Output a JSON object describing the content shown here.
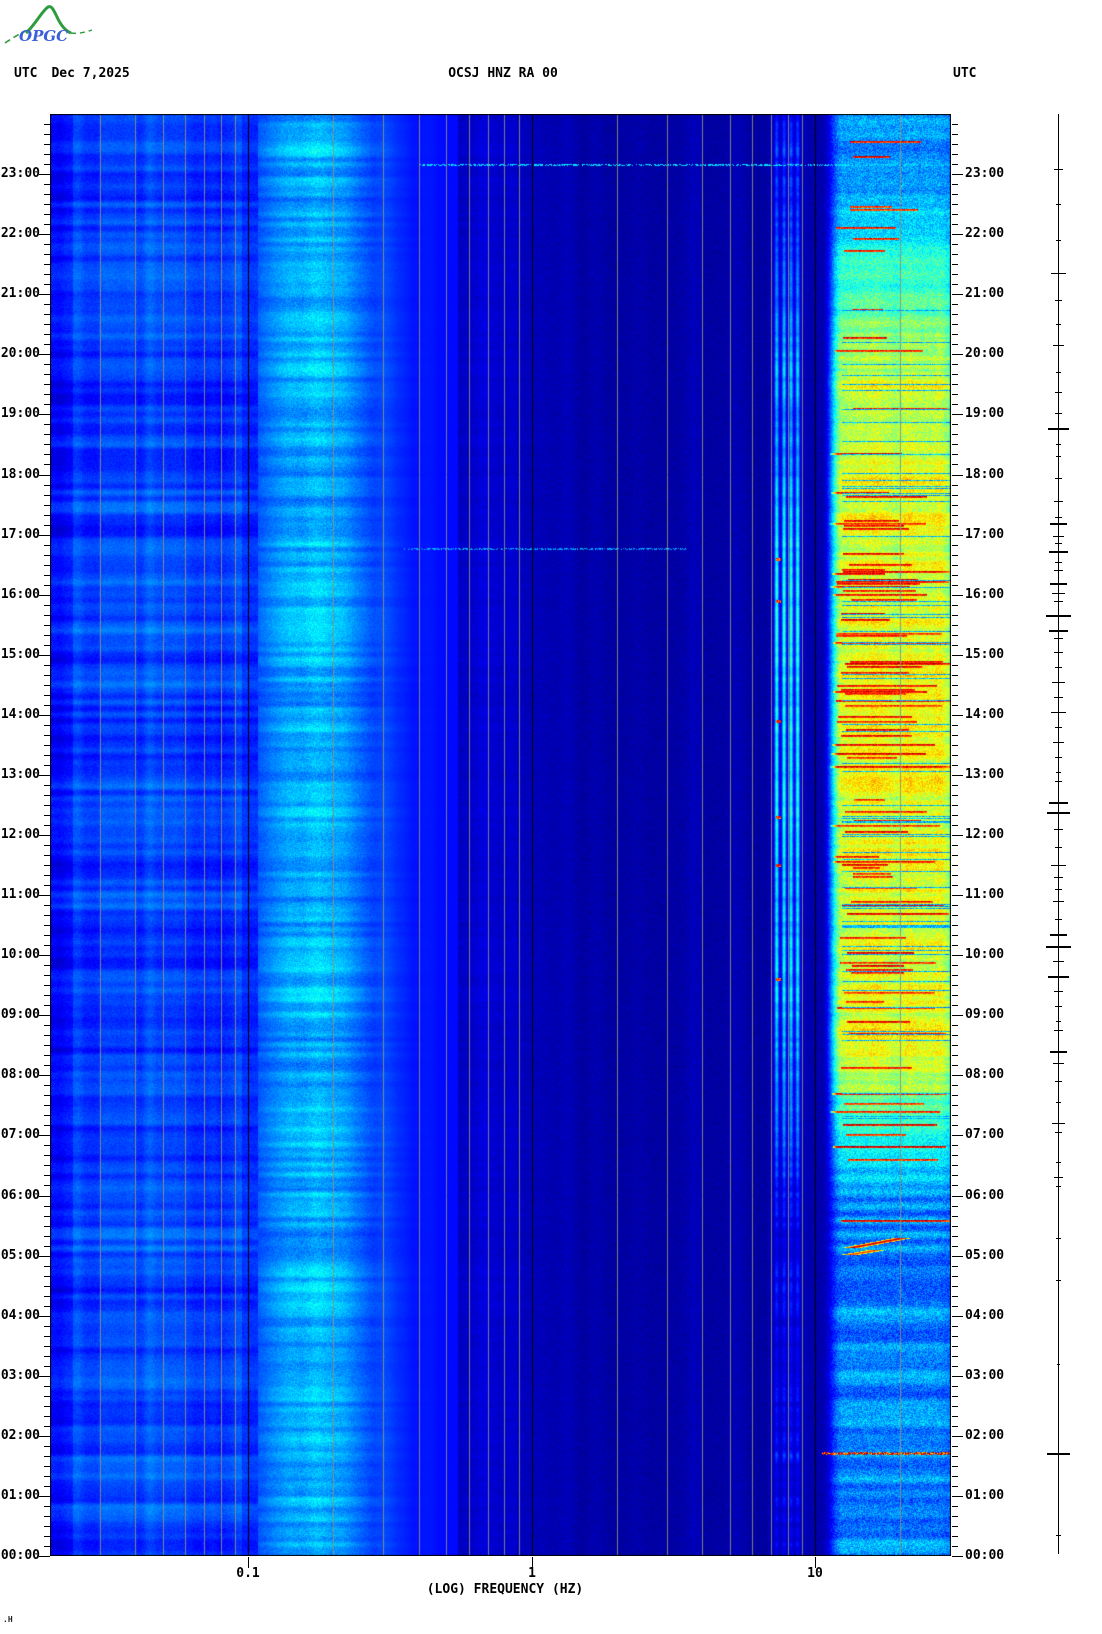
{
  "header": {
    "logo_text": "OPGC",
    "timezone_left": "UTC",
    "date": "Dec 7,2025",
    "title": "OCSJ HNZ RA 00",
    "timezone_right": "UTC"
  },
  "footer": {
    "mark": ".H"
  },
  "colors": {
    "background": "#ffffff",
    "text": "#000000",
    "grid_minor": "#8f8f78",
    "grid_major": "#000000",
    "logo_green": "#2e9b3e",
    "logo_blue": "#3a5fd9",
    "trace": "#000000"
  },
  "x_axis": {
    "label": "(LOG) FREQUENCY (HZ)",
    "scale": "log",
    "freq_min_hz": 0.02,
    "freq_max_hz": 30,
    "ticks": [
      {
        "value": 0.1,
        "label": "0.1"
      },
      {
        "value": 1,
        "label": "1"
      },
      {
        "value": 10,
        "label": "10"
      }
    ],
    "grid_minor_freqs": [
      0.03,
      0.04,
      0.05,
      0.06,
      0.07,
      0.08,
      0.09,
      0.2,
      0.3,
      0.4,
      0.5,
      0.6,
      0.7,
      0.8,
      0.9,
      2,
      3,
      4,
      5,
      6,
      7,
      8,
      9,
      20
    ],
    "grid_major_freqs": [
      0.1,
      1,
      10
    ]
  },
  "y_axis": {
    "unit": "UTC",
    "start": "00:00",
    "end": "24:00",
    "major_tick_minutes": 60,
    "minor_tick_minutes": 10,
    "hour_labels": [
      "23:00",
      "22:00",
      "21:00",
      "20:00",
      "19:00",
      "18:00",
      "17:00",
      "16:00",
      "15:00",
      "14:00",
      "13:00",
      "12:00",
      "11:00",
      "10:00",
      "09:00",
      "08:00",
      "07:00",
      "06:00",
      "05:00",
      "04:00",
      "03:00",
      "02:00",
      "01:00",
      "00:00"
    ]
  },
  "chart_data": {
    "type": "heatmap",
    "subtype": "24h seismic spectrogram, time vertical (00:00 bottom to 24:00 top), log-frequency horizontal",
    "station": "OCSJ HNZ RA 00",
    "date_utc": "Dec 7,2025",
    "colormap": "jet",
    "x": {
      "label": "(LOG) FREQUENCY (HZ)",
      "min": 0.02,
      "max": 30,
      "scale": "log"
    },
    "y": {
      "label": "UTC time",
      "min_hours": 0,
      "max_hours": 24,
      "direction": "up"
    },
    "bands": [
      {
        "f_lo": 0.02,
        "f_hi": 0.095,
        "level": 0.19,
        "character": "medium blue, static vertical column striping with horizontal row banding"
      },
      {
        "f_lo": 0.095,
        "f_hi": 0.108,
        "level": 0.17,
        "character": "slight dip at 0.1 Hz"
      },
      {
        "f_lo": 0.108,
        "f_hi": 0.55,
        "level": 0.31,
        "peak_hz": 0.17,
        "character": "ocean microseism band, bright cyan, strong row banding all day"
      },
      {
        "f_lo": 0.55,
        "f_hi": 6.8,
        "level": 0.05,
        "character": "very quiet dark navy, faint mottle"
      },
      {
        "f_lo": 6.8,
        "f_hi": 9.4,
        "level": 0.08,
        "character": "narrow cyan spectral lines, brighter during daytime"
      },
      {
        "f_lo": 9.4,
        "f_hi": 10.6,
        "level": 0.05,
        "character": "quiet navy gap"
      },
      {
        "f_lo": 10.6,
        "f_hi": 30,
        "level": 0.6,
        "character": "daytime high-frequency noise: yellow/orange base with dark-red horizontal streaks ~07:00-21:00, blue-cyan mottle at night"
      }
    ],
    "spectral_line_freqs_hz": [
      7.3,
      7.75,
      8.2,
      8.65
    ],
    "spectral_line_bursts": {
      "freq_hz": 7.4,
      "times_hours": [
        9.6,
        11.5,
        12.3,
        13.9,
        15.9,
        16.6
      ]
    },
    "diurnal_envelope": {
      "t_hours": [
        0,
        1.5,
        1.68,
        1.78,
        3.5,
        4.8,
        5.4,
        6.0,
        6.4,
        7.0,
        7.6,
        8.1,
        9.0,
        10.0,
        11.0,
        12.0,
        13.0,
        15.0,
        17.0,
        17.6,
        18.3,
        18.9,
        19.4,
        20.0,
        20.6,
        21.2,
        21.8,
        22.5,
        23.2,
        24
      ],
      "level": [
        0.05,
        0.05,
        0.3,
        0.06,
        0.06,
        0.08,
        0.14,
        0.18,
        0.34,
        0.46,
        0.58,
        0.72,
        0.82,
        0.86,
        0.86,
        0.95,
        1.0,
        1.0,
        0.97,
        0.88,
        0.7,
        0.62,
        0.76,
        0.72,
        0.58,
        0.5,
        0.4,
        0.32,
        0.26,
        0.22
      ]
    },
    "events": [
      {
        "type": "broadband_streak",
        "time_hours": 1.72,
        "time_utc": "01:43",
        "f_lo": 10.6,
        "f_hi": 30,
        "intensity": "saturated multicolor red/yellow line"
      },
      {
        "type": "gliding_tremor",
        "time_hours": 5.2,
        "f_lo": 13.6,
        "f_hi": 20.0,
        "intensity": "short slanted yellow streak with red core"
      },
      {
        "type": "gliding_tremor",
        "time_hours": 5.06,
        "f_lo": 13.4,
        "f_hi": 16.2,
        "intensity": "short slanted yellow streak"
      },
      {
        "type": "faint_broadband_line",
        "time_hours": 23.17,
        "f_lo": 0.4,
        "f_hi": 30,
        "intensity": "faint speckled cyan line"
      },
      {
        "type": "faint_broadband_line",
        "time_hours": 16.78,
        "f_lo": 0.35,
        "f_hi": 3.5,
        "intensity": "very faint blue line"
      }
    ],
    "right_trace": {
      "description": "vertical event-amplitude trace at right margin; horizontal dashes mark events, dash half-width in px",
      "ticks": [
        [
          23.08,
          4
        ],
        [
          22.5,
          2
        ],
        [
          21.9,
          2
        ],
        [
          21.35,
          7
        ],
        [
          20.9,
          3
        ],
        [
          20.5,
          2
        ],
        [
          20.15,
          5
        ],
        [
          19.7,
          2
        ],
        [
          19.38,
          3
        ],
        [
          19.02,
          3
        ],
        [
          18.77,
          10
        ],
        [
          18.5,
          2
        ],
        [
          18.3,
          2
        ],
        [
          17.95,
          3
        ],
        [
          17.56,
          4
        ],
        [
          17.3,
          3
        ],
        [
          17.19,
          8
        ],
        [
          16.98,
          5
        ],
        [
          16.86,
          3
        ],
        [
          16.72,
          9
        ],
        [
          16.55,
          3
        ],
        [
          16.41,
          4
        ],
        [
          16.2,
          8
        ],
        [
          16.02,
          6
        ],
        [
          15.9,
          4
        ],
        [
          15.66,
          12
        ],
        [
          15.41,
          9
        ],
        [
          15.28,
          4
        ],
        [
          15.05,
          4
        ],
        [
          14.8,
          3
        ],
        [
          14.55,
          6
        ],
        [
          14.3,
          4
        ],
        [
          14.05,
          7
        ],
        [
          13.8,
          3
        ],
        [
          13.55,
          5
        ],
        [
          13.3,
          3
        ],
        [
          13.05,
          2
        ],
        [
          12.9,
          3
        ],
        [
          12.55,
          9
        ],
        [
          12.38,
          11
        ],
        [
          12.1,
          4
        ],
        [
          11.8,
          3
        ],
        [
          11.5,
          7
        ],
        [
          11.3,
          4
        ],
        [
          11.1,
          3
        ],
        [
          10.9,
          5
        ],
        [
          10.6,
          3
        ],
        [
          10.35,
          8
        ],
        [
          10.15,
          12
        ],
        [
          9.9,
          5
        ],
        [
          9.65,
          10
        ],
        [
          9.4,
          4
        ],
        [
          9.15,
          3
        ],
        [
          8.9,
          2
        ],
        [
          8.75,
          4
        ],
        [
          8.4,
          8
        ],
        [
          8.2,
          5
        ],
        [
          7.9,
          3
        ],
        [
          7.55,
          2
        ],
        [
          7.2,
          6
        ],
        [
          7.05,
          3
        ],
        [
          6.55,
          2
        ],
        [
          6.3,
          4
        ],
        [
          6.15,
          2
        ],
        [
          5.3,
          2
        ],
        [
          4.6,
          2
        ],
        [
          3.2,
          1
        ],
        [
          1.72,
          11
        ],
        [
          0.35,
          2
        ]
      ]
    }
  }
}
